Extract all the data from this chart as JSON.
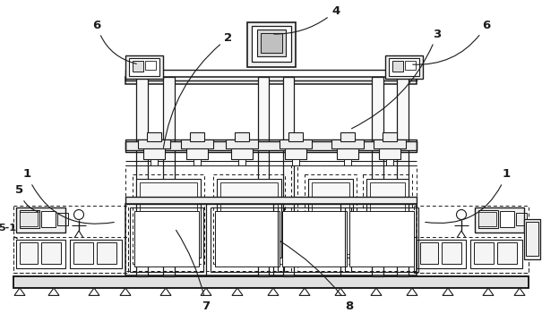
{
  "bg_color": "#ffffff",
  "lc": "#1a1a1a",
  "figsize": [
    6.05,
    3.5
  ],
  "dpi": 100
}
